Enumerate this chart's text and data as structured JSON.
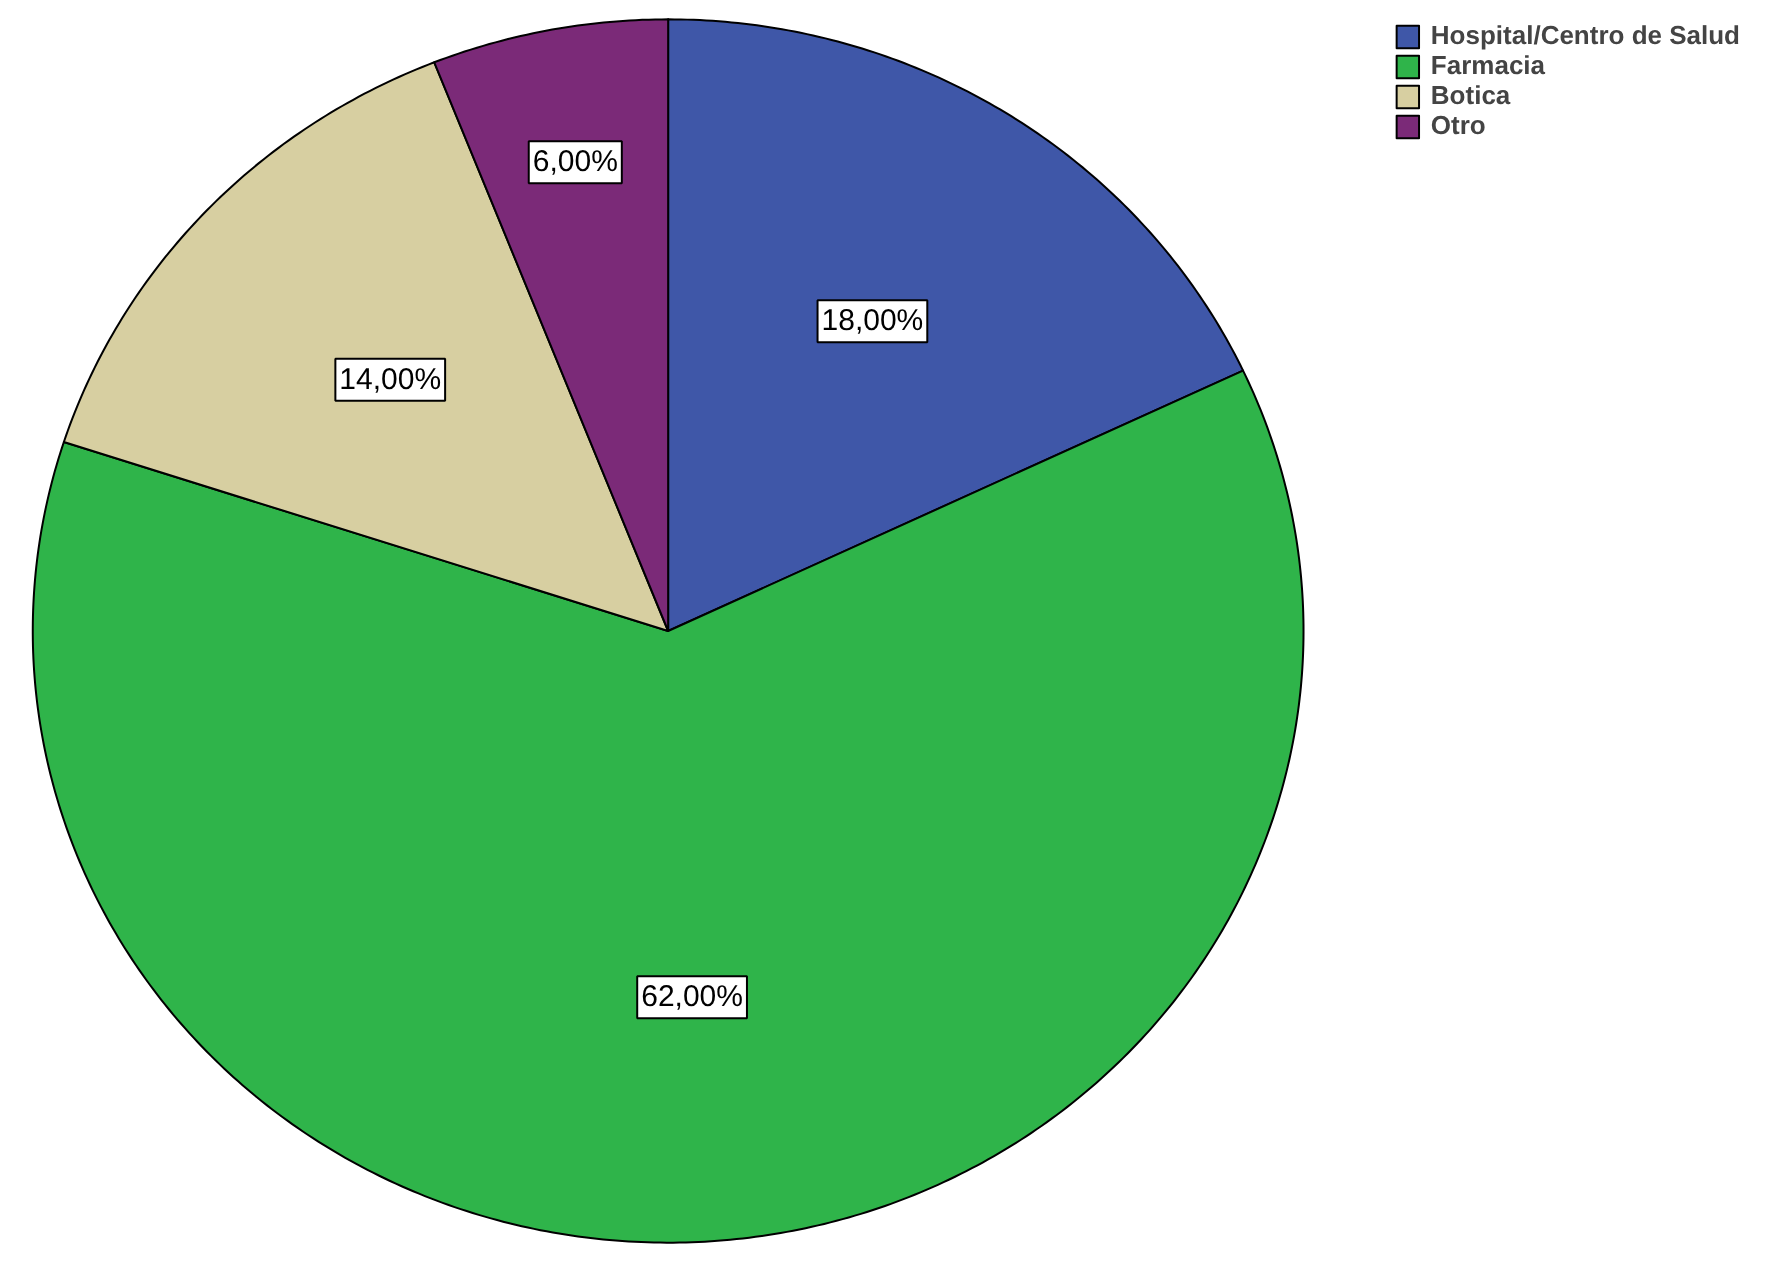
{
  "chart_data": {
    "type": "pie",
    "categories": [
      "Hospital/Centro de Salud",
      "Farmacia",
      "Botica",
      "Otro"
    ],
    "values": [
      18,
      62,
      14,
      6
    ],
    "colors": [
      "#3f57a8",
      "#2fb44a",
      "#d7cfa1",
      "#7b2a78"
    ],
    "value_labels": [
      "18,00%",
      "62,00%",
      "14,00%",
      "6,00%"
    ],
    "legend": "top right"
  }
}
